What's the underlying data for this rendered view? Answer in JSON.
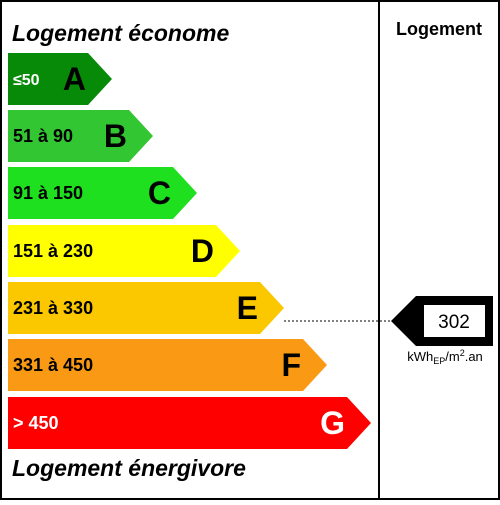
{
  "header": {
    "top_label": "Logement économe",
    "bottom_label": "Logement énergivore",
    "column_title": "Logement"
  },
  "classes": [
    {
      "range": "≤50",
      "letter": "A",
      "color": "#078a07"
    },
    {
      "range": "51 à 90",
      "letter": "B",
      "color": "#33c633"
    },
    {
      "range": "91 à 150",
      "letter": "C",
      "color": "#1fe01f"
    },
    {
      "range": "151 à 230",
      "letter": "D",
      "color": "#ffff00"
    },
    {
      "range": "231 à 330",
      "letter": "E",
      "color": "#fbc800"
    },
    {
      "range": "331 à 450",
      "letter": "F",
      "color": "#fa9a14"
    },
    {
      "range": "> 450",
      "letter": "G",
      "color": "#ff0000"
    }
  ],
  "indicator": {
    "value": 302,
    "unit": {
      "base": "kWh",
      "sub": "EP",
      "mid": "/m",
      "sup": "2",
      "end": ".an"
    }
  }
}
